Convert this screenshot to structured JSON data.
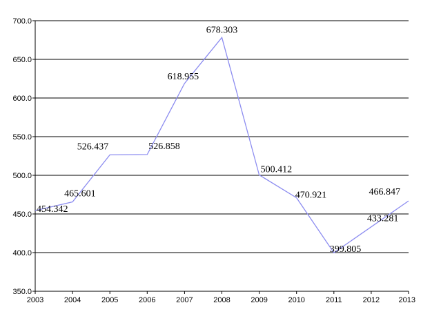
{
  "chart_data": {
    "type": "line",
    "x": [
      "2003",
      "2004",
      "2005",
      "2006",
      "2007",
      "2008",
      "2009",
      "2010",
      "2011",
      "2012",
      "2013"
    ],
    "series": [
      {
        "values": [
          454.342,
          465.601,
          526.437,
          526.858,
          618.955,
          678.303,
          500.412,
          470.921,
          399.805,
          433.281,
          466.847
        ],
        "labels": [
          "454.342",
          "465.601",
          "526.437",
          "526.858",
          "618.955",
          "678.303",
          "500.412",
          "470.921",
          "399.805",
          "433.281",
          "466.847"
        ]
      }
    ],
    "y_ticks": [
      "350.0",
      "400.0",
      "450.0",
      "500.0",
      "550.0",
      "600.0",
      "650.0",
      "700.0"
    ],
    "ylim": [
      350,
      700
    ],
    "grid": true,
    "colors": {
      "series": "#8c8cf0",
      "grid": "#000000"
    }
  }
}
